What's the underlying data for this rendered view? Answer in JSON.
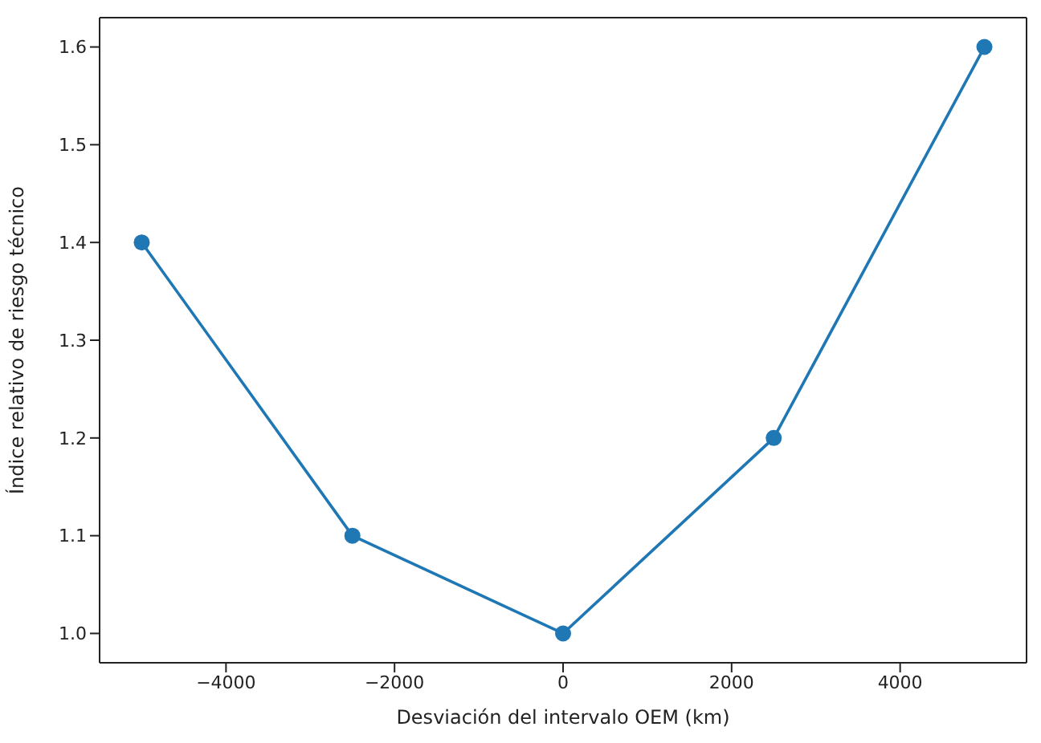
{
  "chart_data": {
    "type": "line",
    "xlabel": "Desviación del intervalo OEM (km)",
    "ylabel": "Índice relativo de riesgo técnico",
    "x": [
      -5000,
      -2500,
      0,
      2500,
      5000
    ],
    "series": [
      {
        "color": "#1f77b4",
        "values": [
          1.4,
          1.1,
          1.0,
          1.2,
          1.6
        ]
      }
    ],
    "xlim": [
      -5500,
      5500
    ],
    "xticks": [
      -4000,
      -2000,
      0,
      2000,
      4000
    ],
    "ylim": [
      0.97,
      1.63
    ],
    "yticks": [
      {
        "value": 1.0,
        "label": "1.0"
      },
      1.1,
      1.2,
      1.3,
      1.4,
      1.5,
      1.6
    ],
    "grid": false,
    "legend": false,
    "marker": "circle",
    "line_style": "solid"
  }
}
